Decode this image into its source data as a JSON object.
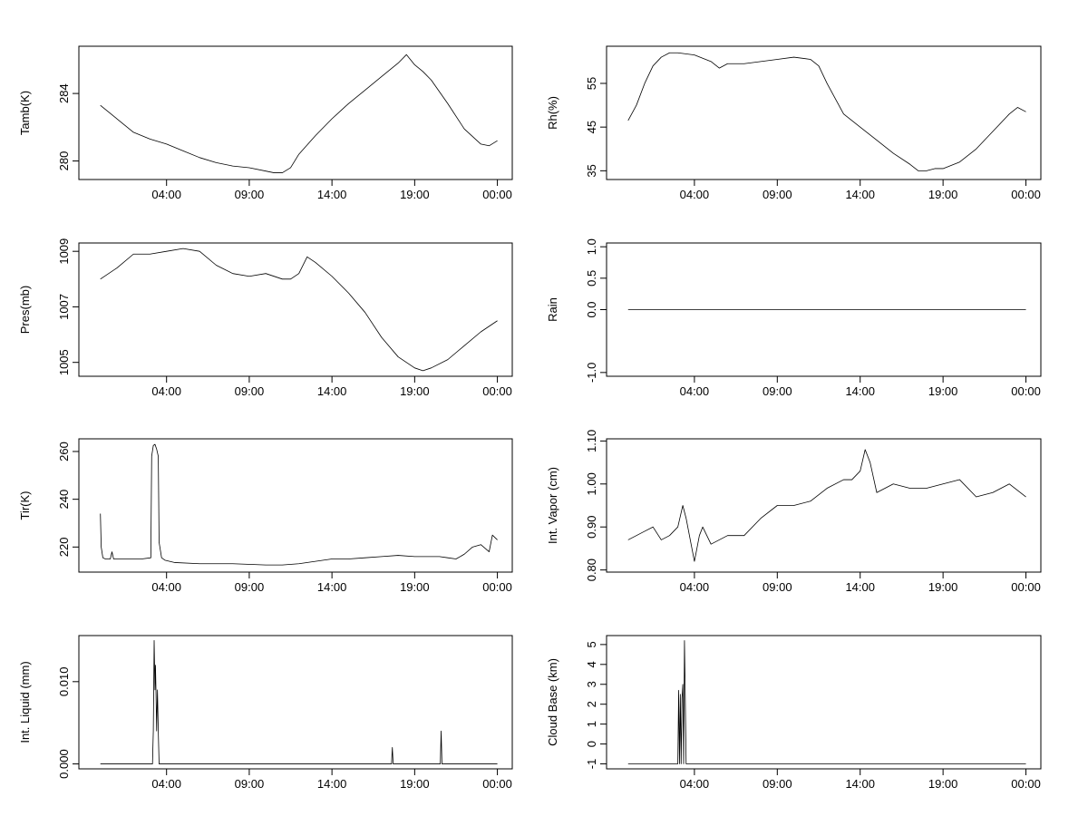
{
  "chart_data": [
    {
      "type": "line",
      "ylabel": "Tamb(K)",
      "x_ticks": [
        "04:00",
        "09:00",
        "14:00",
        "19:00",
        "00:00"
      ],
      "y_ticks": [
        "280",
        "284"
      ],
      "x_hours": [
        0.0,
        1.0,
        2.0,
        3.0,
        4.0,
        5.0,
        6.0,
        7.0,
        8.0,
        9.0,
        10.0,
        10.5,
        11.0,
        11.5,
        12.0,
        13.0,
        14.0,
        15.0,
        16.0,
        17.0,
        18.0,
        18.5,
        19.0,
        19.5,
        20.0,
        21.0,
        22.0,
        23.0,
        23.5,
        24.0
      ],
      "values": [
        283.3,
        282.5,
        281.7,
        281.3,
        281.0,
        280.6,
        280.2,
        279.9,
        279.7,
        279.6,
        279.4,
        279.3,
        279.3,
        279.6,
        280.4,
        281.5,
        282.5,
        283.4,
        284.2,
        285.0,
        285.8,
        286.3,
        285.7,
        285.3,
        284.8,
        283.4,
        281.9,
        281.0,
        280.9,
        281.2
      ],
      "xlim": [
        -1.3,
        24.9
      ],
      "ylim": [
        278.9,
        286.8
      ]
    },
    {
      "type": "line",
      "ylabel": "Rh(%)",
      "x_ticks": [
        "04:00",
        "09:00",
        "14:00",
        "19:00",
        "00:00"
      ],
      "y_ticks": [
        "35",
        "45",
        "55"
      ],
      "x_hours": [
        0.0,
        0.5,
        1.0,
        1.5,
        2.0,
        2.5,
        3.0,
        4.0,
        5.0,
        5.5,
        6.0,
        7.0,
        8.0,
        9.0,
        10.0,
        11.0,
        11.5,
        12.0,
        13.0,
        14.0,
        15.0,
        16.0,
        17.0,
        17.5,
        18.0,
        18.5,
        19.0,
        20.0,
        21.0,
        22.0,
        23.0,
        23.5,
        24.0
      ],
      "values": [
        46.5,
        50.0,
        55.0,
        59.0,
        61.0,
        62.0,
        62.0,
        61.5,
        60.0,
        58.5,
        59.5,
        59.5,
        60.0,
        60.5,
        61.0,
        60.5,
        59.0,
        55.0,
        48.0,
        45.0,
        42.0,
        39.0,
        36.5,
        35.0,
        35.0,
        35.5,
        35.5,
        37.0,
        40.0,
        44.0,
        48.0,
        49.5,
        48.5
      ],
      "xlim": [
        -1.3,
        24.9
      ],
      "ylim": [
        33.0,
        63.5
      ]
    },
    {
      "type": "line",
      "ylabel": "Pres(mb)",
      "x_ticks": [
        "04:00",
        "09:00",
        "14:00",
        "19:00",
        "00:00"
      ],
      "y_ticks": [
        "1005",
        "1007",
        "1009"
      ],
      "x_hours": [
        0.0,
        1.0,
        2.0,
        3.0,
        4.0,
        5.0,
        6.0,
        7.0,
        8.0,
        9.0,
        10.0,
        11.0,
        11.5,
        12.0,
        12.5,
        13.0,
        14.0,
        15.0,
        16.0,
        17.0,
        18.0,
        19.0,
        19.5,
        20.0,
        21.0,
        22.0,
        23.0,
        24.0
      ],
      "values": [
        1008.0,
        1008.4,
        1008.9,
        1008.9,
        1009.0,
        1009.1,
        1009.0,
        1008.5,
        1008.2,
        1008.1,
        1008.2,
        1008.0,
        1008.0,
        1008.2,
        1008.8,
        1008.6,
        1008.1,
        1007.5,
        1006.8,
        1005.9,
        1005.2,
        1004.8,
        1004.7,
        1004.8,
        1005.1,
        1005.6,
        1006.1,
        1006.5
      ],
      "xlim": [
        -1.3,
        24.9
      ],
      "ylim": [
        1004.5,
        1009.3
      ]
    },
    {
      "type": "line",
      "ylabel": "Rain",
      "x_ticks": [
        "04:00",
        "09:00",
        "14:00",
        "19:00",
        "00:00"
      ],
      "y_ticks": [
        "-1.0",
        "0.0",
        "0.5",
        "1.0"
      ],
      "x_hours": [
        0.0,
        24.0
      ],
      "values": [
        0.0,
        0.0
      ],
      "xlim": [
        -1.3,
        24.9
      ],
      "ylim": [
        -1.06,
        1.06
      ]
    },
    {
      "type": "line",
      "ylabel": "Tir(K)",
      "x_ticks": [
        "04:00",
        "09:00",
        "14:00",
        "19:00",
        "00:00"
      ],
      "y_ticks": [
        "220",
        "240",
        "260"
      ],
      "x_hours": [
        0.0,
        0.05,
        0.15,
        0.3,
        0.6,
        0.7,
        0.8,
        1.5,
        2.5,
        3.05,
        3.1,
        3.2,
        3.3,
        3.4,
        3.5,
        3.55,
        3.7,
        3.9,
        4.5,
        6.0,
        8.0,
        10.0,
        11.0,
        12.0,
        13.0,
        14.0,
        15.0,
        16.0,
        17.0,
        18.0,
        19.0,
        20.0,
        20.5,
        21.0,
        21.5,
        22.0,
        22.5,
        23.0,
        23.5,
        23.7,
        24.0
      ],
      "values": [
        234.0,
        220.0,
        215.5,
        215.0,
        215.0,
        218.0,
        215.0,
        215.0,
        215.0,
        215.5,
        258.0,
        262.5,
        263.0,
        261.0,
        258.0,
        222.0,
        215.5,
        214.5,
        213.5,
        213.0,
        213.0,
        212.5,
        212.5,
        213.0,
        214.0,
        215.0,
        215.0,
        215.5,
        216.0,
        216.5,
        216.0,
        216.0,
        216.0,
        215.5,
        215.0,
        217.0,
        220.0,
        221.0,
        218.0,
        225.0,
        223.0
      ],
      "xlim": [
        -1.3,
        24.9
      ],
      "ylim": [
        209.5,
        265.3
      ]
    },
    {
      "type": "line",
      "ylabel": "Int. Vapor (cm)",
      "x_ticks": [
        "04:00",
        "09:00",
        "14:00",
        "19:00",
        "00:00"
      ],
      "y_ticks": [
        "0.80",
        "0.90",
        "1.00",
        "1.10"
      ],
      "x_hours": [
        0.0,
        0.5,
        1.0,
        1.5,
        2.0,
        2.5,
        3.0,
        3.3,
        3.5,
        3.8,
        4.0,
        4.3,
        4.5,
        5.0,
        5.5,
        6.0,
        7.0,
        8.0,
        9.0,
        10.0,
        11.0,
        12.0,
        13.0,
        13.5,
        14.0,
        14.3,
        14.6,
        15.0,
        16.0,
        17.0,
        18.0,
        19.0,
        20.0,
        21.0,
        22.0,
        23.0,
        24.0
      ],
      "values": [
        0.87,
        0.88,
        0.89,
        0.9,
        0.87,
        0.88,
        0.9,
        0.95,
        0.92,
        0.86,
        0.82,
        0.88,
        0.9,
        0.86,
        0.87,
        0.88,
        0.88,
        0.92,
        0.95,
        0.95,
        0.96,
        0.99,
        1.01,
        1.01,
        1.03,
        1.08,
        1.05,
        0.98,
        1.0,
        0.99,
        0.99,
        1.0,
        1.01,
        0.97,
        0.98,
        1.0,
        0.97
      ],
      "xlim": [
        -1.3,
        24.9
      ],
      "ylim": [
        0.795,
        1.105
      ]
    },
    {
      "type": "line",
      "ylabel": "Int. Liquid (mm)",
      "x_ticks": [
        "04:00",
        "09:00",
        "14:00",
        "19:00",
        "00:00"
      ],
      "y_ticks": [
        "0.000",
        "0.010"
      ],
      "x_hours": [
        0.0,
        3.15,
        3.2,
        3.25,
        3.3,
        3.33,
        3.36,
        3.4,
        3.45,
        3.5,
        3.55,
        3.6,
        17.6,
        17.65,
        17.7,
        20.55,
        20.6,
        20.65,
        24.0
      ],
      "values": [
        0.0,
        0.0,
        0.004,
        0.015,
        0.009,
        0.012,
        0.009,
        0.004,
        0.009,
        0.004,
        0.0,
        0.0,
        0.0,
        0.002,
        0.0,
        0.0,
        0.004,
        0.0,
        0.0
      ],
      "xlim": [
        -1.3,
        24.9
      ],
      "ylim": [
        -0.0006,
        0.0156
      ]
    },
    {
      "type": "line",
      "ylabel": "Cloud Base (km)",
      "x_ticks": [
        "04:00",
        "09:00",
        "14:00",
        "19:00",
        "00:00"
      ],
      "y_ticks": [
        "-1",
        "0",
        "1",
        "2",
        "3",
        "4",
        "5"
      ],
      "x_hours": [
        0.0,
        3.0,
        3.05,
        3.1,
        3.15,
        3.2,
        3.25,
        3.3,
        3.35,
        3.4,
        3.45,
        3.5,
        3.55,
        24.0
      ],
      "values": [
        -1.0,
        -1.0,
        2.7,
        -1.0,
        2.5,
        -1.0,
        2.3,
        3.0,
        -1.0,
        5.2,
        2.2,
        -1.0,
        -1.0,
        -1.0
      ],
      "xlim": [
        -1.3,
        24.9
      ],
      "ylim": [
        -1.25,
        5.45
      ]
    }
  ]
}
